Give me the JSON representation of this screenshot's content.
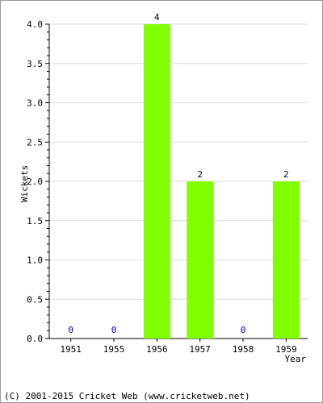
{
  "chart_data": {
    "type": "bar",
    "categories": [
      "1951",
      "1955",
      "1956",
      "1957",
      "1958",
      "1959"
    ],
    "values": [
      0,
      0,
      4,
      2,
      0,
      2
    ],
    "data_labels": [
      "0",
      "0",
      "4",
      "2",
      "0",
      "2"
    ],
    "xlabel": "Year",
    "ylabel": "Wickets",
    "ylim": [
      0,
      4.0
    ],
    "yticks": [
      "0.0",
      "0.5",
      "1.0",
      "1.5",
      "2.0",
      "2.5",
      "3.0",
      "3.5",
      "4.0"
    ],
    "grid": true,
    "legend": "none",
    "colors": {
      "bar": "#80ff00",
      "zero_label": "#0000cc",
      "label": "#000000",
      "grid": "#d9d9d9"
    }
  },
  "footer": {
    "copyright": "(C) 2001-2015 Cricket Web (www.cricketweb.net)"
  }
}
